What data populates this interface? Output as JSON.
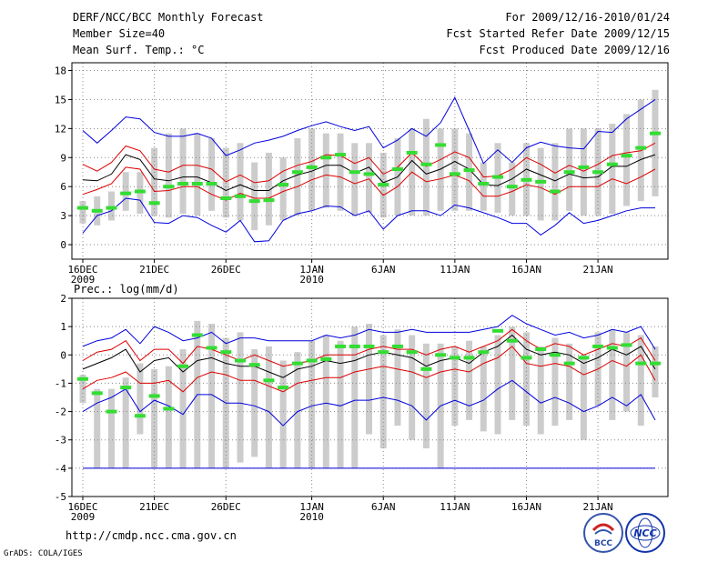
{
  "header": {
    "left": [
      "DERF/NCC/BCC Monthly Forecast",
      "Member Size=40",
      "Mean Surf. Temp.: °C"
    ],
    "right": [
      "For 2009/12/16-2010/01/24",
      "Fcst Started Refer Date 2009/12/15",
      "Fcst Produced Date 2009/12/16"
    ]
  },
  "footer": {
    "url": "http://cmdp.ncc.cma.gov.cn",
    "grads": "GrADS: COLA/IGES",
    "logo_bcc": "BCC",
    "logo_ncc": "NCC"
  },
  "colors": {
    "envelope": "#0000dd",
    "spread": "#dd0000",
    "mean": "#000000",
    "obs": "#33dd33",
    "box": "#cccccc",
    "grid": "#888888"
  },
  "chart_data": [
    {
      "type": "line",
      "title": "",
      "ylabel": "Mean Surf. Temp.: °C",
      "ylim": [
        -1.5,
        18.8
      ],
      "yticks": [
        0,
        3,
        6,
        9,
        12,
        15,
        18
      ],
      "x_labels": [
        {
          "index": 0,
          "label": "16DEC",
          "sub": "2009"
        },
        {
          "index": 5,
          "label": "21DEC",
          "sub": ""
        },
        {
          "index": 10,
          "label": "26DEC",
          "sub": ""
        },
        {
          "index": 16,
          "label": "1JAN",
          "sub": "2010"
        },
        {
          "index": 21,
          "label": "6JAN",
          "sub": ""
        },
        {
          "index": 26,
          "label": "11JAN",
          "sub": ""
        },
        {
          "index": 31,
          "label": "16JAN",
          "sub": ""
        },
        {
          "index": 36,
          "label": "21JAN",
          "sub": ""
        }
      ],
      "gridlines": true,
      "series": [
        {
          "name": "ensemble max",
          "color_key": "envelope",
          "values": [
            11.8,
            10.5,
            11.8,
            13.2,
            13.0,
            11.6,
            11.2,
            11.2,
            11.5,
            11.0,
            9.2,
            9.8,
            10.5,
            10.8,
            11.2,
            11.8,
            12.3,
            12.7,
            12.2,
            11.8,
            12.2,
            10.0,
            10.8,
            12.0,
            11.2,
            12.6,
            15.2,
            11.8,
            8.4,
            9.8,
            8.5,
            10.0,
            10.6,
            10.2,
            10.0,
            9.9,
            11.7,
            11.6,
            13.0,
            14.0,
            15.0
          ]
        },
        {
          "name": "upper spread",
          "color_key": "spread",
          "values": [
            8.3,
            7.6,
            8.5,
            10.2,
            9.7,
            7.8,
            7.5,
            8.2,
            8.2,
            7.8,
            6.5,
            7.2,
            6.4,
            6.6,
            7.6,
            8.2,
            8.6,
            9.3,
            9.2,
            8.4,
            9.0,
            7.3,
            8.0,
            9.5,
            8.1,
            8.8,
            9.6,
            9.0,
            7.0,
            7.1,
            7.8,
            9.0,
            8.3,
            7.4,
            8.2,
            7.6,
            8.3,
            9.2,
            9.5,
            9.7,
            10.5
          ]
        },
        {
          "name": "ensemble mean",
          "color_key": "mean",
          "values": [
            6.7,
            6.6,
            7.3,
            9.3,
            8.8,
            6.8,
            6.6,
            7.0,
            7.0,
            6.4,
            5.6,
            6.2,
            5.6,
            5.6,
            6.6,
            7.2,
            7.6,
            8.2,
            8.2,
            7.4,
            8.0,
            6.4,
            7.0,
            8.7,
            7.3,
            7.8,
            8.6,
            7.8,
            6.2,
            6.1,
            6.8,
            7.8,
            7.2,
            6.6,
            7.3,
            6.9,
            7.0,
            8.1,
            8.1,
            8.8,
            9.3
          ]
        },
        {
          "name": "lower spread",
          "color_key": "spread",
          "values": [
            5.2,
            5.7,
            6.3,
            8.0,
            7.8,
            5.5,
            5.6,
            6.0,
            6.0,
            5.2,
            4.6,
            5.3,
            4.8,
            4.8,
            5.5,
            6.0,
            6.7,
            7.2,
            7.0,
            6.3,
            6.8,
            5.1,
            6.0,
            7.5,
            6.5,
            6.8,
            7.2,
            6.6,
            5.0,
            5.0,
            5.5,
            6.2,
            5.9,
            5.2,
            6.0,
            6.0,
            6.0,
            6.8,
            6.3,
            7.0,
            7.8
          ]
        },
        {
          "name": "ensemble min",
          "color_key": "envelope",
          "values": [
            1.2,
            3.0,
            3.5,
            4.8,
            4.6,
            2.3,
            2.2,
            3.0,
            2.8,
            2.0,
            1.3,
            2.5,
            0.3,
            0.4,
            2.5,
            3.2,
            3.5,
            4.0,
            3.9,
            3.0,
            3.5,
            1.6,
            3.0,
            3.5,
            3.5,
            3.0,
            4.1,
            3.8,
            3.3,
            2.8,
            2.2,
            2.2,
            1.0,
            2.0,
            3.3,
            2.2,
            2.5,
            3.0,
            3.5,
            3.8,
            3.8
          ]
        }
      ],
      "boxes": {
        "low": [
          2.2,
          2.0,
          2.5,
          3.5,
          3.2,
          3.0,
          2.8,
          3.2,
          3.0,
          3.5,
          2.8,
          2.5,
          1.5,
          2.0,
          2.5,
          3.0,
          3.5,
          3.8,
          3.5,
          3.0,
          3.3,
          2.8,
          3.0,
          3.0,
          3.0,
          3.5,
          3.5,
          3.5,
          3.5,
          3.3,
          3.0,
          3.0,
          2.5,
          2.5,
          3.5,
          3.0,
          3.0,
          3.2,
          4.0,
          4.5,
          5.0
        ],
        "high": [
          4.5,
          5.0,
          5.5,
          7.5,
          7.5,
          10.0,
          11.5,
          12.0,
          11.5,
          11.0,
          10.0,
          10.5,
          8.5,
          9.5,
          9.0,
          11.0,
          12.0,
          11.5,
          11.5,
          10.5,
          10.5,
          9.5,
          11.0,
          12.0,
          13.0,
          12.0,
          12.0,
          11.5,
          8.5,
          10.5,
          8.5,
          10.5,
          10.0,
          10.5,
          12.0,
          12.0,
          12.0,
          12.5,
          13.5,
          15.0,
          16.0
        ]
      },
      "observed": [
        3.8,
        3.5,
        3.8,
        5.3,
        5.5,
        4.3,
        6.0,
        6.3,
        6.3,
        6.3,
        4.8,
        5.0,
        4.5,
        4.6,
        6.2,
        7.5,
        8.0,
        9.0,
        9.3,
        7.5,
        7.3,
        6.2,
        7.8,
        9.5,
        8.3,
        10.3,
        7.3,
        7.7,
        6.3,
        7.0,
        6.0,
        6.7,
        6.5,
        5.5,
        7.5,
        8.0,
        7.5,
        8.3,
        9.2,
        10.0,
        11.5
      ]
    },
    {
      "type": "line",
      "title": "",
      "ylabel": "Prec.: log(mm/d)",
      "ylim": [
        -5,
        2
      ],
      "yticks": [
        -5,
        -4,
        -3,
        -2,
        -1,
        0,
        1,
        2
      ],
      "x_labels": [
        {
          "index": 0,
          "label": "16DEC",
          "sub": "2009"
        },
        {
          "index": 5,
          "label": "21DEC",
          "sub": ""
        },
        {
          "index": 10,
          "label": "26DEC",
          "sub": ""
        },
        {
          "index": 16,
          "label": "1JAN",
          "sub": "2010"
        },
        {
          "index": 21,
          "label": "6JAN",
          "sub": ""
        },
        {
          "index": 26,
          "label": "11JAN",
          "sub": ""
        },
        {
          "index": 31,
          "label": "16JAN",
          "sub": ""
        },
        {
          "index": 36,
          "label": "21JAN",
          "sub": ""
        }
      ],
      "gridlines": true,
      "series": [
        {
          "name": "ensemble max",
          "color_key": "envelope",
          "values": [
            0.3,
            0.5,
            0.6,
            0.9,
            0.4,
            1.0,
            0.8,
            0.5,
            0.6,
            0.8,
            0.4,
            0.6,
            0.6,
            0.5,
            0.5,
            0.5,
            0.5,
            0.7,
            0.6,
            0.7,
            0.9,
            0.8,
            0.8,
            0.9,
            0.8,
            0.8,
            0.8,
            0.8,
            0.9,
            1.0,
            1.4,
            1.1,
            0.9,
            0.7,
            0.8,
            0.6,
            0.7,
            0.9,
            0.8,
            1.0,
            0.2
          ]
        },
        {
          "name": "upper spread",
          "color_key": "spread",
          "values": [
            -0.2,
            0.1,
            0.2,
            0.5,
            -0.2,
            0.2,
            0.2,
            -0.3,
            0.3,
            0.2,
            0.0,
            -0.2,
            0.0,
            -0.2,
            -0.4,
            -0.3,
            -0.2,
            0.0,
            0.0,
            0.0,
            0.2,
            0.3,
            0.2,
            0.2,
            0.0,
            0.2,
            0.3,
            0.1,
            0.3,
            0.5,
            0.9,
            0.5,
            0.2,
            0.4,
            0.3,
            0.0,
            0.2,
            0.4,
            0.3,
            0.6,
            -0.2
          ]
        },
        {
          "name": "ensemble mean",
          "color_key": "mean",
          "values": [
            -0.5,
            -0.3,
            -0.1,
            0.2,
            -0.6,
            -0.2,
            -0.1,
            -0.6,
            -0.2,
            -0.1,
            -0.3,
            -0.4,
            -0.4,
            -0.6,
            -0.8,
            -0.5,
            -0.4,
            -0.2,
            -0.3,
            -0.2,
            0.0,
            0.1,
            0.0,
            -0.1,
            -0.4,
            -0.2,
            -0.1,
            -0.3,
            0.1,
            0.3,
            0.7,
            0.2,
            0.0,
            0.1,
            0.0,
            -0.3,
            -0.1,
            0.2,
            0.0,
            0.3,
            -0.5
          ]
        },
        {
          "name": "lower spread",
          "color_key": "spread",
          "values": [
            -1.2,
            -0.9,
            -0.8,
            -0.6,
            -1.0,
            -1.0,
            -0.9,
            -1.3,
            -0.8,
            -0.6,
            -0.7,
            -0.9,
            -0.9,
            -1.1,
            -1.3,
            -1.0,
            -0.9,
            -0.8,
            -0.8,
            -0.6,
            -0.5,
            -0.4,
            -0.5,
            -0.6,
            -0.8,
            -0.6,
            -0.5,
            -0.6,
            -0.3,
            -0.1,
            0.3,
            -0.3,
            -0.4,
            -0.3,
            -0.4,
            -0.7,
            -0.5,
            -0.2,
            -0.4,
            0.0,
            -0.9
          ]
        },
        {
          "name": "ensemble min",
          "color_key": "envelope",
          "values": [
            -2.0,
            -1.7,
            -1.5,
            -1.2,
            -2.0,
            -1.6,
            -1.8,
            -2.1,
            -1.4,
            -1.4,
            -1.7,
            -1.7,
            -1.8,
            -2.0,
            -2.5,
            -2.0,
            -1.8,
            -1.7,
            -1.8,
            -1.6,
            -1.6,
            -1.5,
            -1.6,
            -1.8,
            -2.3,
            -1.8,
            -1.6,
            -1.8,
            -1.6,
            -1.2,
            -0.9,
            -1.3,
            -1.7,
            -1.5,
            -1.7,
            -2.0,
            -1.8,
            -1.5,
            -1.8,
            -1.4,
            -2.3
          ]
        },
        {
          "name": "dry threshold",
          "color_key": "envelope",
          "values": [
            -4,
            -4,
            -4,
            -4,
            -4,
            -4,
            -4,
            -4,
            -4,
            -4,
            -4,
            -4,
            -4,
            -4,
            -4,
            -4,
            -4,
            -4,
            -4,
            -4,
            -4,
            -4,
            -4,
            -4,
            -4,
            -4,
            -4,
            -4,
            -4,
            -4,
            -4,
            -4,
            -4,
            -4,
            -4,
            -4,
            -4,
            -4,
            -4,
            -4,
            -4
          ]
        }
      ],
      "boxes": {
        "low": [
          -1.7,
          -4.0,
          -4.0,
          -4.0,
          -2.8,
          -4.0,
          -4.0,
          -4.0,
          -4.0,
          -4.0,
          -4.0,
          -3.8,
          -3.6,
          -4.0,
          -4.0,
          -4.0,
          -4.0,
          -4.0,
          -4.0,
          -4.0,
          -2.8,
          -3.3,
          -2.5,
          -3.0,
          -3.3,
          -4.0,
          -2.5,
          -2.3,
          -2.7,
          -2.8,
          -2.3,
          -2.5,
          -2.8,
          -2.5,
          -2.3,
          -3.0,
          -1.8,
          -2.3,
          -2.0,
          -2.5,
          -1.5
        ],
        "high": [
          -0.7,
          -1.2,
          -1.2,
          -0.8,
          -0.3,
          -0.5,
          -0.4,
          0.2,
          1.2,
          1.1,
          0.6,
          0.8,
          0.2,
          0.3,
          -0.2,
          0.1,
          0.5,
          0.7,
          0.5,
          1.0,
          1.1,
          0.7,
          0.9,
          0.7,
          0.4,
          0.4,
          0.3,
          0.5,
          0.3,
          0.7,
          1.0,
          0.8,
          0.3,
          0.6,
          0.4,
          0.0,
          0.8,
          0.9,
          0.8,
          0.7,
          0.3
        ]
      },
      "observed": [
        -0.85,
        -1.35,
        -2.0,
        -1.15,
        -2.15,
        -1.45,
        -1.9,
        -0.4,
        0.7,
        0.25,
        0.1,
        -0.2,
        -0.35,
        -0.9,
        -1.15,
        -0.3,
        -0.2,
        -0.15,
        0.3,
        0.3,
        0.3,
        0.1,
        0.3,
        0.1,
        -0.5,
        0.0,
        -0.1,
        -0.1,
        0.1,
        0.85,
        0.5,
        -0.1,
        0.2,
        0.0,
        -0.3,
        -0.1,
        0.3,
        0.25,
        0.35,
        -0.3,
        -0.3
      ]
    }
  ]
}
